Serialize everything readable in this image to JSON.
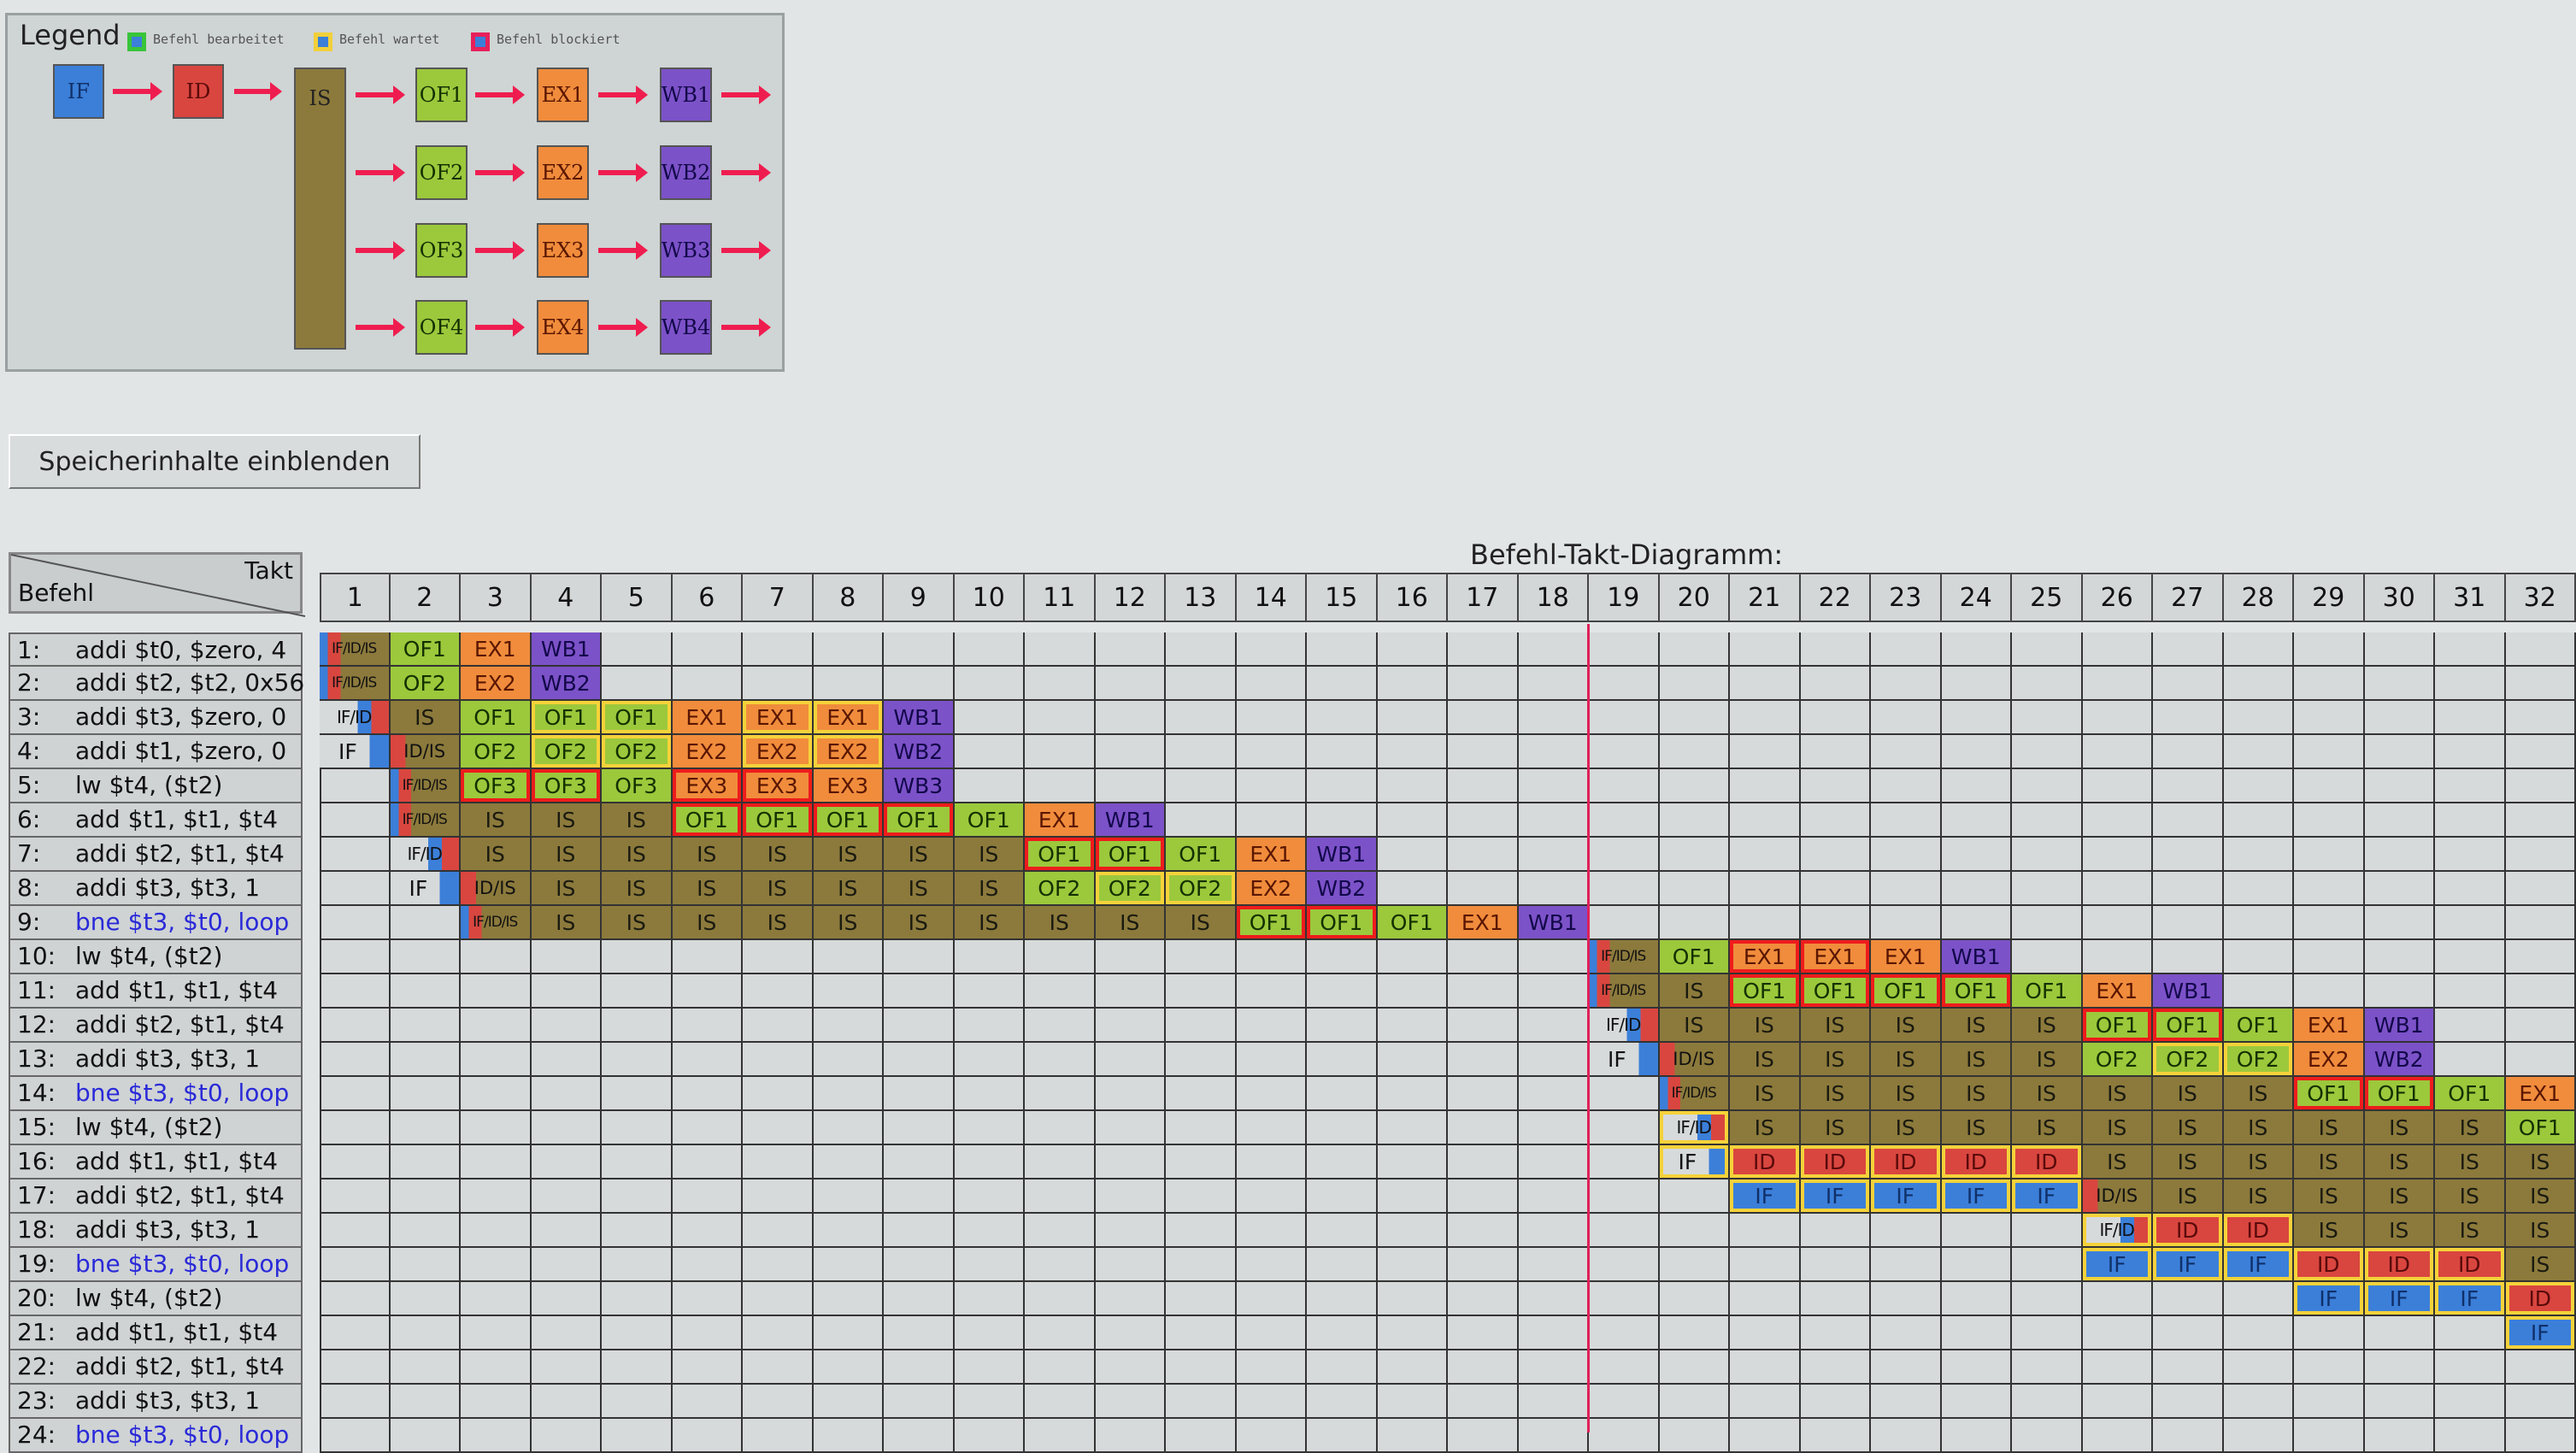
{
  "legend": {
    "title": "Legend",
    "items": [
      {
        "label": "Befehl bearbeitet",
        "border": "#39c43a"
      },
      {
        "label": "Befehl wartet",
        "border": "#f2cf3a"
      },
      {
        "label": "Befehl blockiert",
        "border": "#e8205a"
      }
    ],
    "stages": {
      "if": "IF",
      "id": "ID",
      "is": "IS",
      "of": [
        "OF1",
        "OF2",
        "OF3",
        "OF4"
      ],
      "ex": [
        "EX1",
        "EX2",
        "EX3",
        "EX4"
      ],
      "wb": [
        "WB1",
        "WB2",
        "WB3",
        "WB4"
      ]
    }
  },
  "memory_button": "Speicherinhalte einblenden",
  "diagram": {
    "title": "Befehl-Takt-Diagramm:",
    "corner_row_label": "Befehl",
    "corner_col_label": "Takt",
    "cycles": [
      1,
      2,
      3,
      4,
      5,
      6,
      7,
      8,
      9,
      10,
      11,
      12,
      13,
      14,
      15,
      16,
      17,
      18,
      19,
      20,
      21,
      22,
      23,
      24,
      25,
      26,
      27,
      28,
      29,
      30,
      31,
      32
    ],
    "marker_before_cycle": 19,
    "colors": {
      "IF": "#3b7fd9",
      "ID": "#d9463f",
      "IS": "#8c7a3c",
      "OF": "#9cc83c",
      "EX": "#f08c3c",
      "WB": "#7c52c8",
      "wait": "#f5d23a",
      "block": "#ee1c1c"
    },
    "rows": [
      {
        "num": "1:",
        "instr": "addi $t0, $zero, 4",
        "start": 1,
        "cells": [
          "IF/ID/IS",
          "OF1",
          "EX1",
          "WB1"
        ]
      },
      {
        "num": "2:",
        "instr": "addi $t2, $t2, 0x56",
        "start": 1,
        "cells": [
          "IF/ID/IS",
          "OF2",
          "EX2",
          "WB2"
        ]
      },
      {
        "num": "3:",
        "instr": "addi $t3, $zero, 0",
        "start": 1,
        "cells": [
          "IF/ID",
          "IS",
          "OF1",
          {
            "text": "OF1",
            "state": "wait"
          },
          {
            "text": "OF1",
            "state": "wait"
          },
          "EX1",
          {
            "text": "EX1",
            "state": "wait"
          },
          {
            "text": "EX1",
            "state": "wait"
          },
          "WB1"
        ]
      },
      {
        "num": "4:",
        "instr": "addi $t1, $zero, 0",
        "start": 1,
        "cells": [
          "IF",
          "ID/IS",
          "OF2",
          {
            "text": "OF2",
            "state": "wait"
          },
          {
            "text": "OF2",
            "state": "wait"
          },
          "EX2",
          {
            "text": "EX2",
            "state": "wait"
          },
          {
            "text": "EX2",
            "state": "wait"
          },
          "WB2"
        ]
      },
      {
        "num": "5:",
        "instr": "lw $t4, ($t2)",
        "start": 2,
        "cells": [
          "IF/ID/IS",
          {
            "text": "OF3",
            "state": "block"
          },
          {
            "text": "OF3",
            "state": "block"
          },
          "OF3",
          {
            "text": "EX3",
            "state": "block"
          },
          {
            "text": "EX3",
            "state": "block"
          },
          "EX3",
          "WB3"
        ]
      },
      {
        "num": "6:",
        "instr": "add $t1, $t1, $t4",
        "start": 2,
        "cells": [
          "IF/ID/IS",
          "IS",
          "IS",
          "IS",
          {
            "text": "OF1",
            "state": "block"
          },
          {
            "text": "OF1",
            "state": "block"
          },
          {
            "text": "OF1",
            "state": "block"
          },
          {
            "text": "OF1",
            "state": "block"
          },
          "OF1",
          "EX1",
          "WB1"
        ]
      },
      {
        "num": "7:",
        "instr": "addi $t2, $t1, $t4",
        "start": 2,
        "cells": [
          "IF/ID",
          "IS",
          "IS",
          "IS",
          "IS",
          "IS",
          "IS",
          "IS",
          "IS",
          {
            "text": "OF1",
            "state": "block"
          },
          {
            "text": "OF1",
            "state": "block"
          },
          "OF1",
          "EX1",
          "WB1"
        ]
      },
      {
        "num": "8:",
        "instr": "addi $t3, $t3, 1",
        "start": 2,
        "cells": [
          "IF",
          "ID/IS",
          "IS",
          "IS",
          "IS",
          "IS",
          "IS",
          "IS",
          "IS",
          "OF2",
          {
            "text": "OF2",
            "state": "wait"
          },
          {
            "text": "OF2",
            "state": "wait"
          },
          "EX2",
          "WB2"
        ]
      },
      {
        "num": "9:",
        "instr": "bne $t3, $t0, loop",
        "branch": true,
        "start": 3,
        "cells": [
          "IF/ID/IS",
          "IS",
          "IS",
          "IS",
          "IS",
          "IS",
          "IS",
          "IS",
          "IS",
          "IS",
          "IS",
          {
            "text": "OF1",
            "state": "block"
          },
          {
            "text": "OF1",
            "state": "block"
          },
          "OF1",
          "EX1",
          "WB1"
        ]
      },
      {
        "num": "10:",
        "instr": "lw $t4, ($t2)",
        "start": 19,
        "cells": [
          "IF/ID/IS",
          "OF1",
          {
            "text": "EX1",
            "state": "block"
          },
          {
            "text": "EX1",
            "state": "block"
          },
          "EX1",
          "WB1"
        ]
      },
      {
        "num": "11:",
        "instr": "add $t1, $t1, $t4",
        "start": 19,
        "cells": [
          "IF/ID/IS",
          "IS",
          {
            "text": "OF1",
            "state": "block"
          },
          {
            "text": "OF1",
            "state": "block"
          },
          {
            "text": "OF1",
            "state": "block"
          },
          {
            "text": "OF1",
            "state": "block"
          },
          "OF1",
          "EX1",
          "WB1"
        ]
      },
      {
        "num": "12:",
        "instr": "addi $t2, $t1, $t4",
        "start": 19,
        "cells": [
          "IF/ID",
          "IS",
          "IS",
          "IS",
          "IS",
          "IS",
          "IS",
          {
            "text": "OF1",
            "state": "block"
          },
          {
            "text": "OF1",
            "state": "block"
          },
          "OF1",
          "EX1",
          "WB1"
        ]
      },
      {
        "num": "13:",
        "instr": "addi $t3, $t3, 1",
        "start": 19,
        "cells": [
          "IF",
          "ID/IS",
          "IS",
          "IS",
          "IS",
          "IS",
          "IS",
          "OF2",
          {
            "text": "OF2",
            "state": "wait"
          },
          {
            "text": "OF2",
            "state": "wait"
          },
          "EX2",
          "WB2"
        ]
      },
      {
        "num": "14:",
        "instr": "bne $t3, $t0, loop",
        "branch": true,
        "start": 20,
        "cells": [
          "IF/ID/IS",
          "IS",
          "IS",
          "IS",
          "IS",
          "IS",
          "IS",
          "IS",
          "IS",
          {
            "text": "OF1",
            "state": "block"
          },
          {
            "text": "OF1",
            "state": "block"
          },
          "OF1",
          "EX1"
        ]
      },
      {
        "num": "15:",
        "instr": "lw $t4, ($t2)",
        "start": 20,
        "cells": [
          {
            "text": "IF/ID",
            "state": "wait"
          },
          "IS",
          "IS",
          "IS",
          "IS",
          "IS",
          "IS",
          "IS",
          "IS",
          "IS",
          "IS",
          "IS",
          "OF1"
        ]
      },
      {
        "num": "16:",
        "instr": "add $t1, $t1, $t4",
        "start": 20,
        "cells": [
          {
            "text": "IF",
            "state": "wait"
          },
          {
            "text": "ID",
            "state": "wait"
          },
          {
            "text": "ID",
            "state": "wait"
          },
          {
            "text": "ID",
            "state": "wait"
          },
          {
            "text": "ID",
            "state": "wait"
          },
          {
            "text": "ID",
            "state": "wait"
          },
          "IS",
          "IS",
          "IS",
          "IS",
          "IS",
          "IS",
          "IS"
        ]
      },
      {
        "num": "17:",
        "instr": "addi $t2, $t1, $t4",
        "start": 21,
        "cells": [
          {
            "text": "IF",
            "state": "wait"
          },
          {
            "text": "IF",
            "state": "wait"
          },
          {
            "text": "IF",
            "state": "wait"
          },
          {
            "text": "IF",
            "state": "wait"
          },
          {
            "text": "IF",
            "state": "wait"
          },
          "ID/IS",
          "IS",
          "IS",
          "IS",
          "IS",
          "IS",
          "IS"
        ]
      },
      {
        "num": "18:",
        "instr": "addi $t3, $t3, 1",
        "start": 26,
        "cells": [
          {
            "text": "IF/ID",
            "state": "wait"
          },
          {
            "text": "ID",
            "state": "wait"
          },
          {
            "text": "ID",
            "state": "wait"
          },
          "IS",
          "IS",
          "IS",
          "IS"
        ]
      },
      {
        "num": "19:",
        "instr": "bne $t3, $t0, loop",
        "branch": true,
        "start": 26,
        "cells": [
          {
            "text": "IF",
            "state": "wait"
          },
          {
            "text": "IF",
            "state": "wait"
          },
          {
            "text": "IF",
            "state": "wait"
          },
          {
            "text": "ID",
            "state": "wait"
          },
          {
            "text": "ID",
            "state": "wait"
          },
          {
            "text": "ID",
            "state": "wait"
          },
          "IS"
        ]
      },
      {
        "num": "20:",
        "instr": "lw $t4, ($t2)",
        "start": 29,
        "cells": [
          {
            "text": "IF",
            "state": "wait"
          },
          {
            "text": "IF",
            "state": "wait"
          },
          {
            "text": "IF",
            "state": "wait"
          },
          {
            "text": "ID",
            "state": "wait"
          }
        ]
      },
      {
        "num": "21:",
        "instr": "add $t1, $t1, $t4",
        "start": 32,
        "cells": [
          {
            "text": "IF",
            "state": "wait"
          }
        ]
      },
      {
        "num": "22:",
        "instr": "addi $t2, $t1, $t4",
        "start": 0,
        "cells": []
      },
      {
        "num": "23:",
        "instr": "addi $t3, $t3, 1",
        "start": 0,
        "cells": []
      },
      {
        "num": "24:",
        "instr": "bne $t3, $t0, loop",
        "branch": true,
        "start": 0,
        "cells": []
      }
    ]
  }
}
